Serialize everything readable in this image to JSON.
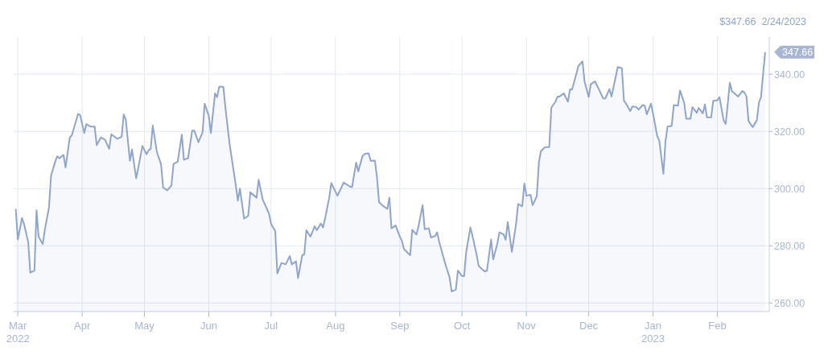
{
  "chart_data": {
    "type": "area",
    "annotations": [
      "$347.66  2/24/2023",
      "347.66"
    ],
    "x": [
      "2022-02-28",
      "2022-03-01",
      "2022-03-03",
      "2022-03-04",
      "2022-03-06",
      "2022-03-07",
      "2022-03-09",
      "2022-03-10",
      "2022-03-11",
      "2022-03-13",
      "2022-03-14",
      "2022-03-16",
      "2022-03-17",
      "2022-03-19",
      "2022-03-20",
      "2022-03-21",
      "2022-03-23",
      "2022-03-24",
      "2022-03-26",
      "2022-03-27",
      "2022-03-30",
      "2022-03-31",
      "2022-04-02",
      "2022-04-03",
      "2022-04-05",
      "2022-04-07",
      "2022-04-08",
      "2022-04-10",
      "2022-04-12",
      "2022-04-14",
      "2022-04-15",
      "2022-04-18",
      "2022-04-20",
      "2022-04-21",
      "2022-04-22",
      "2022-04-24",
      "2022-04-25",
      "2022-04-27",
      "2022-04-28",
      "2022-04-30",
      "2022-05-02",
      "2022-05-03",
      "2022-05-04",
      "2022-05-05",
      "2022-05-07",
      "2022-05-09",
      "2022-05-10",
      "2022-05-12",
      "2022-05-14",
      "2022-05-15",
      "2022-05-17",
      "2022-05-19",
      "2022-05-20",
      "2022-05-22",
      "2022-05-24",
      "2022-05-25",
      "2022-05-27",
      "2022-05-29",
      "2022-05-30",
      "2022-06-01",
      "2022-06-02",
      "2022-06-04",
      "2022-06-05",
      "2022-06-06",
      "2022-06-08",
      "2022-06-09",
      "2022-06-11",
      "2022-06-14",
      "2022-06-15",
      "2022-06-16",
      "2022-06-18",
      "2022-06-20",
      "2022-06-21",
      "2022-06-24",
      "2022-06-25",
      "2022-06-27",
      "2022-06-29",
      "2022-06-30",
      "2022-07-01",
      "2022-07-03",
      "2022-07-04",
      "2022-07-06",
      "2022-07-08",
      "2022-07-10",
      "2022-07-11",
      "2022-07-13",
      "2022-07-14",
      "2022-07-16",
      "2022-07-17",
      "2022-07-18",
      "2022-07-20",
      "2022-07-22",
      "2022-07-23",
      "2022-07-25",
      "2022-07-26",
      "2022-07-27",
      "2022-07-29",
      "2022-07-30",
      "2022-08-02",
      "2022-08-05",
      "2022-08-08",
      "2022-08-09",
      "2022-08-11",
      "2022-08-12",
      "2022-08-14",
      "2022-08-15",
      "2022-08-17",
      "2022-08-18",
      "2022-08-20",
      "2022-08-21",
      "2022-08-22",
      "2022-08-24",
      "2022-08-26",
      "2022-08-27",
      "2022-08-28",
      "2022-08-30",
      "2022-09-01",
      "2022-09-02",
      "2022-09-03",
      "2022-09-05",
      "2022-09-06",
      "2022-09-07",
      "2022-09-09",
      "2022-09-10",
      "2022-09-12",
      "2022-09-13",
      "2022-09-15",
      "2022-09-16",
      "2022-09-18",
      "2022-09-19",
      "2022-09-20",
      "2022-09-22",
      "2022-09-23",
      "2022-09-25",
      "2022-09-26",
      "2022-09-28",
      "2022-09-29",
      "2022-10-01",
      "2022-10-02",
      "2022-10-03",
      "2022-10-05",
      "2022-10-06",
      "2022-10-08",
      "2022-10-09",
      "2022-10-11",
      "2022-10-12",
      "2022-10-13",
      "2022-10-15",
      "2022-10-16",
      "2022-10-18",
      "2022-10-19",
      "2022-10-21",
      "2022-10-22",
      "2022-10-23",
      "2022-10-25",
      "2022-10-27",
      "2022-10-28",
      "2022-10-30",
      "2022-10-31",
      "2022-11-01",
      "2022-11-03",
      "2022-11-04",
      "2022-11-06",
      "2022-11-07",
      "2022-11-08",
      "2022-11-10",
      "2022-11-12",
      "2022-11-13",
      "2022-11-15",
      "2022-11-16",
      "2022-11-17",
      "2022-11-19",
      "2022-11-21",
      "2022-11-22",
      "2022-11-23",
      "2022-11-25",
      "2022-11-26",
      "2022-11-28",
      "2022-11-29",
      "2022-12-01",
      "2022-12-02",
      "2022-12-04",
      "2022-12-06",
      "2022-12-08",
      "2022-12-09",
      "2022-12-11",
      "2022-12-12",
      "2022-12-15",
      "2022-12-17",
      "2022-12-18",
      "2022-12-19",
      "2022-12-21",
      "2022-12-22",
      "2022-12-24",
      "2022-12-25",
      "2022-12-27",
      "2022-12-28",
      "2022-12-29",
      "2022-12-31",
      "2023-01-01",
      "2023-01-03",
      "2023-01-04",
      "2023-01-06",
      "2023-01-07",
      "2023-01-08",
      "2023-01-10",
      "2023-01-11",
      "2023-01-13",
      "2023-01-14",
      "2023-01-16",
      "2023-01-17",
      "2023-01-19",
      "2023-01-20",
      "2023-01-22",
      "2023-01-23",
      "2023-01-25",
      "2023-01-26",
      "2023-01-27",
      "2023-01-29",
      "2023-01-30",
      "2023-02-01",
      "2023-02-02",
      "2023-02-04",
      "2023-02-05",
      "2023-02-07",
      "2023-02-08",
      "2023-02-10",
      "2023-02-11",
      "2023-02-13",
      "2023-02-14",
      "2023-02-15",
      "2023-02-16",
      "2023-02-18",
      "2023-02-20",
      "2023-02-21",
      "2023-02-22",
      "2023-02-24"
    ],
    "series": [
      {
        "color": "#8fa5cc",
        "values": [
          292.9,
          282.2,
          289.7,
          287.6,
          281.3,
          270.6,
          271.3,
          292.4,
          283.2,
          280.6,
          285.6,
          293.4,
          304.5,
          309.4,
          311.3,
          310.6,
          311.8,
          307.4,
          317.8,
          318.6,
          326.1,
          325.7,
          319.4,
          322.5,
          321.7,
          321.7,
          315.2,
          317.9,
          317.1,
          313.9,
          319,
          317.4,
          318.1,
          325.9,
          324.2,
          309.7,
          313.7,
          303.6,
          307.2,
          314.9,
          312,
          313.4,
          313.9,
          322,
          312.8,
          308.4,
          300.4,
          299.4,
          301.1,
          308.6,
          309.4,
          318.8,
          310.1,
          310.6,
          320.3,
          320.3,
          316.2,
          319.7,
          329.7,
          325.4,
          319.4,
          333.3,
          332,
          335.6,
          335.6,
          328.3,
          315.7,
          301.1,
          295.8,
          300,
          289.5,
          290.5,
          298.7,
          296.8,
          303.1,
          296.1,
          292.9,
          291.2,
          287.6,
          285.1,
          270.3,
          274,
          273.5,
          276.4,
          273.5,
          274.5,
          268.7,
          276.7,
          277,
          285.4,
          283.2,
          286.8,
          285.4,
          287.8,
          286.4,
          289.5,
          296.8,
          301.9,
          297.5,
          302.1,
          300.7,
          300.5,
          309.1,
          306,
          311.3,
          312.1,
          312.3,
          309.7,
          309.8,
          304,
          295.3,
          293.9,
          292.9,
          296.8,
          286.1,
          287.1,
          283.2,
          281.8,
          278.9,
          277.4,
          276.7,
          285.6,
          283.9,
          286.8,
          294.2,
          285.8,
          286.1,
          282.9,
          283.4,
          284.7,
          281.3,
          276.1,
          273.5,
          268.9,
          264,
          264.7,
          271.3,
          269.4,
          269.4,
          277.9,
          286.4,
          283.5,
          276.9,
          273,
          271.6,
          271,
          271.3,
          282.2,
          275.2,
          280.8,
          284.7,
          284,
          282.1,
          288.3,
          277.9,
          287.6,
          294.6,
          293.8,
          301.8,
          297.5,
          297.8,
          294.2,
          297.3,
          309.1,
          313.1,
          314.5,
          314.5,
          328.3,
          330.4,
          332.2,
          332.2,
          333.3,
          330.4,
          334.7,
          334.6,
          340,
          342.8,
          344.5,
          337.5,
          332,
          336.5,
          337.5,
          334.6,
          331.5,
          331.5,
          334.8,
          332.2,
          342.5,
          342.1,
          330.7,
          329.7,
          327.1,
          328.7,
          328.5,
          327.6,
          329.2,
          329,
          326,
          329.7,
          326.3,
          318.4,
          316.8,
          305.2,
          316.6,
          321.7,
          321.9,
          329.2,
          329,
          334.3,
          330,
          324.4,
          324.4,
          328.5,
          326.5,
          328.2,
          326.3,
          329.4,
          324.9,
          324.9,
          330.7,
          330.9,
          332,
          323.9,
          322.6,
          337,
          334.1,
          332.8,
          332.2,
          334.1,
          333.6,
          332.2,
          323.6,
          321.5,
          323.9,
          330,
          332,
          347.7
        ]
      }
    ],
    "xlim": [
      "2022-02-27",
      "2023-02-26"
    ],
    "xticks": [
      {
        "value": "2022-03-01",
        "label": "Mar\n2022"
      },
      {
        "value": "2022-04-01",
        "label": "Apr"
      },
      {
        "value": "2022-05-01",
        "label": "May"
      },
      {
        "value": "2022-06-01",
        "label": "Jun"
      },
      {
        "value": "2022-07-01",
        "label": "Jul"
      },
      {
        "value": "2022-08-01",
        "label": "Aug"
      },
      {
        "value": "2022-09-01",
        "label": "Sep"
      },
      {
        "value": "2022-10-01",
        "label": "Oct"
      },
      {
        "value": "2022-11-01",
        "label": "Nov"
      },
      {
        "value": "2022-12-01",
        "label": "Dec"
      },
      {
        "value": "2023-01-01",
        "label": "Jan\n2023"
      },
      {
        "value": "2023-02-01",
        "label": "Feb"
      }
    ],
    "ylim": [
      257,
      353
    ],
    "yticks": [
      {
        "value": 260,
        "label": "260.00"
      },
      {
        "value": 280,
        "label": "280.00"
      },
      {
        "value": 300,
        "label": "300.00"
      },
      {
        "value": 320,
        "label": "320.00"
      },
      {
        "value": 340,
        "label": "340.00"
      }
    ],
    "grid": true,
    "marker": "none",
    "line_style": "solid"
  }
}
